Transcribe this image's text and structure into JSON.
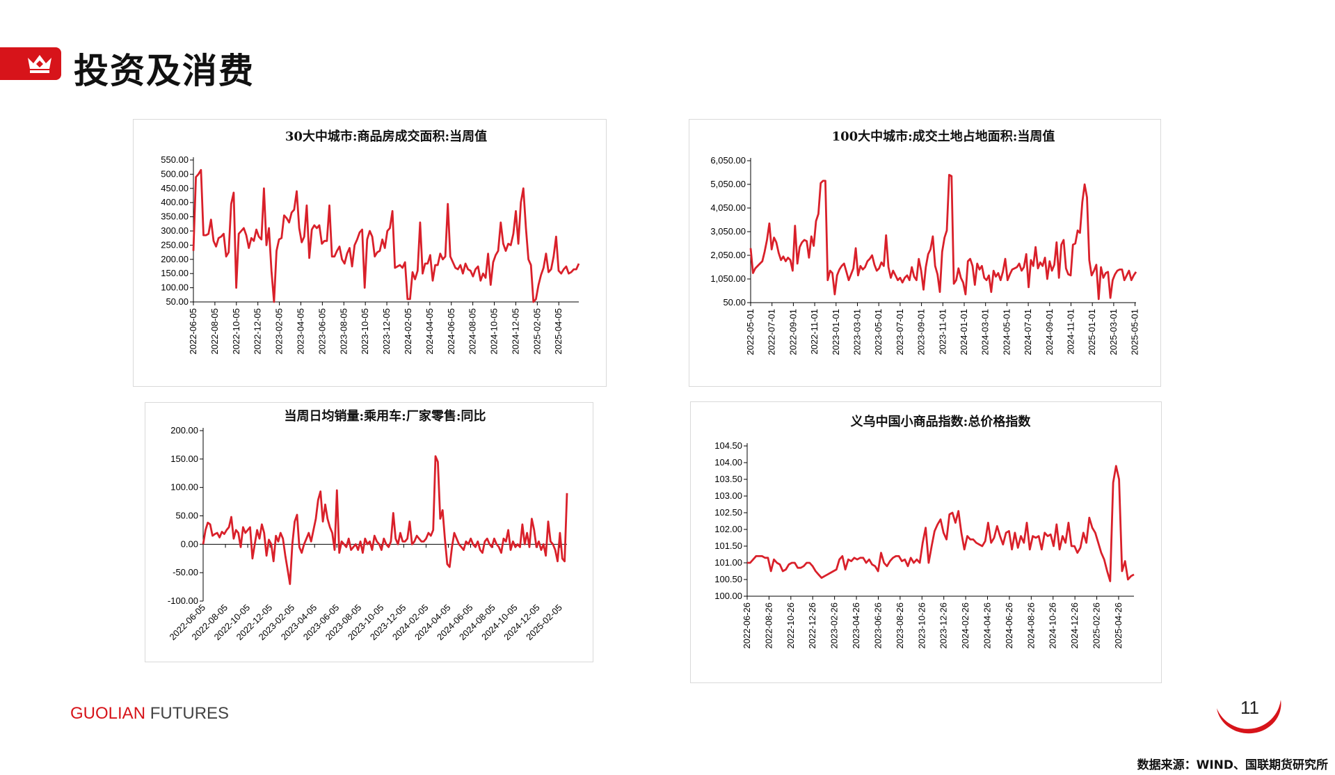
{
  "page": {
    "title": "投资及消费",
    "brand_part1": "GUOLIAN",
    "brand_part2": "FUTURES",
    "page_number": "11",
    "source": "数据来源：WIND、国联期货研究所",
    "accent_color": "#d7141a",
    "line_color": "#d9202a",
    "crown_icon": "crown-icon"
  },
  "chart_data": [
    {
      "type": "line",
      "title": "30大中城市:商品房成交面积:当周值",
      "xlabel": "",
      "ylabel": "",
      "ylim": [
        50,
        550
      ],
      "y_ticks": [
        "550.00",
        "500.00",
        "450.00",
        "400.00",
        "350.00",
        "300.00",
        "250.00",
        "200.00",
        "150.00",
        "100.00",
        "50.00"
      ],
      "x_ticks": [
        "2022-06-05",
        "2022-08-05",
        "2022-10-05",
        "2022-12-05",
        "2023-02-05",
        "2023-04-05",
        "2023-06-05",
        "2023-08-05",
        "2023-10-05",
        "2023-12-05",
        "2024-02-05",
        "2024-04-05",
        "2024-06-05",
        "2024-08-05",
        "2024-10-05",
        "2024-12-05",
        "2025-02-05",
        "2025-04-05"
      ],
      "x_tick_positions": [
        0,
        8.7,
        17.4,
        26.1,
        34.8,
        43.5,
        52.2,
        60.9,
        69.6,
        78.3,
        87,
        95.7,
        104.4,
        113.1,
        121.8,
        130.5,
        139.2,
        147.9
      ],
      "x_range": [
        0,
        156
      ],
      "values": [
        230,
        490,
        500,
        515,
        285,
        285,
        290,
        340,
        265,
        245,
        275,
        280,
        290,
        210,
        225,
        395,
        435,
        100,
        290,
        300,
        310,
        285,
        240,
        275,
        265,
        305,
        280,
        270,
        450,
        250,
        310,
        160,
        50,
        230,
        270,
        275,
        355,
        345,
        330,
        365,
        375,
        440,
        310,
        260,
        280,
        390,
        205,
        305,
        320,
        310,
        320,
        255,
        265,
        265,
        390,
        210,
        210,
        230,
        245,
        200,
        185,
        220,
        240,
        175,
        250,
        270,
        295,
        305,
        100,
        270,
        300,
        280,
        210,
        225,
        230,
        270,
        240,
        300,
        310,
        370,
        170,
        175,
        180,
        170,
        190,
        60,
        60,
        155,
        130,
        160,
        330,
        150,
        185,
        185,
        215,
        125,
        180,
        180,
        220,
        200,
        210,
        395,
        210,
        190,
        170,
        165,
        180,
        150,
        185,
        165,
        160,
        140,
        165,
        175,
        125,
        150,
        135,
        220,
        110,
        190,
        215,
        230,
        330,
        255,
        230,
        255,
        250,
        290,
        370,
        255,
        400,
        450,
        310,
        200,
        180,
        50,
        60,
        110,
        145,
        170,
        220,
        155,
        165,
        210,
        280,
        160,
        150,
        165,
        175,
        150,
        155,
        165,
        165,
        185
      ]
    },
    {
      "type": "line",
      "title": "100大中城市:成交土地占地面积:当周值",
      "ylim": [
        50,
        6050
      ],
      "y_ticks": [
        "6,050.00",
        "5,050.00",
        "4,050.00",
        "3,050.00",
        "2,050.00",
        "1,050.00",
        "50.00"
      ],
      "x_ticks": [
        "2022-05-01",
        "2022-07-01",
        "2022-09-01",
        "2022-11-01",
        "2023-01-01",
        "2023-03-01",
        "2023-05-01",
        "2023-07-01",
        "2023-09-01",
        "2023-11-01",
        "2024-01-01",
        "2024-03-01",
        "2024-05-01",
        "2024-07-01",
        "2024-09-01",
        "2024-11-01",
        "2025-01-01",
        "2025-03-01",
        "2025-05-01"
      ],
      "x_tick_positions": [
        0,
        8.7,
        17.4,
        26.1,
        34.8,
        43.5,
        52.2,
        60.9,
        69.6,
        78.3,
        87,
        95.7,
        104.4,
        113.1,
        121.8,
        130.5,
        139.2,
        147.9,
        156.6
      ],
      "x_range": [
        0,
        157
      ],
      "values": [
        2350,
        1300,
        1500,
        1600,
        1700,
        1800,
        2200,
        2700,
        3400,
        2300,
        2800,
        2600,
        2150,
        1850,
        2000,
        1800,
        1950,
        1850,
        1400,
        3300,
        1700,
        2400,
        2600,
        2700,
        2650,
        1950,
        2850,
        2450,
        3500,
        3800,
        5100,
        5200,
        5200,
        1000,
        1400,
        1300,
        400,
        1200,
        1450,
        1600,
        1700,
        1350,
        1000,
        1250,
        1500,
        2350,
        1200,
        1600,
        1450,
        1550,
        1800,
        1900,
        2050,
        1650,
        1400,
        1500,
        1750,
        1600,
        2900,
        1550,
        1100,
        1400,
        1200,
        1000,
        1100,
        900,
        1100,
        1200,
        1000,
        1550,
        1150,
        1000,
        1900,
        1400,
        600,
        1550,
        2100,
        2300,
        2850,
        1600,
        1250,
        500,
        2200,
        2800,
        3100,
        5450,
        5400,
        850,
        1000,
        1500,
        1100,
        900,
        400,
        1800,
        1900,
        1600,
        800,
        1700,
        1450,
        1600,
        1100,
        1000,
        1200,
        500,
        1400,
        1150,
        1300,
        1000,
        1350,
        1900,
        1000,
        1250,
        1450,
        1500,
        1550,
        1700,
        1400,
        1550,
        2100,
        700,
        1850,
        1600,
        2400,
        1500,
        1750,
        1600,
        1950,
        1050,
        1800,
        1400,
        1650,
        2600,
        1100,
        2500,
        2700,
        1500,
        1250,
        1200,
        2500,
        2550,
        3100,
        3000,
        4300,
        5050,
        4500,
        1850,
        1200,
        1400,
        1650,
        200,
        1550,
        1100,
        1300,
        1350,
        250,
        1000,
        1250,
        1400,
        1450,
        1450,
        1000,
        1200,
        1400,
        1000,
        1200,
        1350
      ]
    },
    {
      "type": "line",
      "title": "当周日均销量:乘用车:厂家零售:同比",
      "ylim": [
        -100,
        200
      ],
      "y_ticks": [
        "200.00",
        "150.00",
        "100.00",
        "50.00",
        "0.00",
        "-50.00",
        "-100.00"
      ],
      "x_ticks": [
        "2022-06-05",
        "2022-08-05",
        "2022-10-05",
        "2022-12-05",
        "2023-02-05",
        "2023-04-05",
        "2023-06-05",
        "2023-08-05",
        "2023-10-05",
        "2023-12-05",
        "2024-02-05",
        "2024-04-05",
        "2024-06-05",
        "2024-08-05",
        "2024-10-05",
        "2024-12-05",
        "2025-02-05"
      ],
      "x_tick_positions": [
        0,
        8.7,
        17.4,
        26.1,
        34.8,
        43.5,
        52.2,
        60.9,
        69.6,
        78.3,
        87,
        95.7,
        104.4,
        113.1,
        121.8,
        130.5,
        139.2
      ],
      "x_range": [
        0,
        142
      ],
      "values": [
        0,
        25,
        38,
        35,
        15,
        18,
        20,
        12,
        22,
        18,
        25,
        30,
        48,
        10,
        25,
        20,
        -5,
        30,
        20,
        25,
        30,
        -25,
        0,
        25,
        10,
        35,
        20,
        -20,
        8,
        0,
        -30,
        15,
        5,
        20,
        10,
        -20,
        -45,
        -70,
        0,
        40,
        52,
        -5,
        -15,
        0,
        10,
        20,
        5,
        25,
        45,
        78,
        93,
        40,
        70,
        45,
        30,
        20,
        -10,
        95,
        -15,
        5,
        0,
        -5,
        10,
        -10,
        -5,
        0,
        -10,
        5,
        -15,
        10,
        0,
        5,
        -10,
        15,
        5,
        0,
        -10,
        10,
        0,
        -5,
        5,
        55,
        10,
        0,
        20,
        5,
        5,
        10,
        40,
        0,
        5,
        15,
        10,
        5,
        5,
        10,
        20,
        15,
        25,
        155,
        145,
        45,
        60,
        10,
        -35,
        -40,
        -5,
        20,
        10,
        0,
        -5,
        -10,
        5,
        0,
        10,
        0,
        -5,
        5,
        -10,
        -15,
        5,
        10,
        0,
        -5,
        10,
        0,
        -5,
        -15,
        10,
        5,
        25,
        -10,
        5,
        -5,
        0,
        -5,
        35,
        0,
        20,
        -5,
        45,
        25,
        -5,
        5,
        -10,
        0,
        -20,
        40,
        5,
        0,
        -10,
        -30,
        20,
        -25,
        -30,
        90
      ]
    },
    {
      "type": "line",
      "title": "义乌中国小商品指数:总价格指数",
      "ylim": [
        100,
        104.5
      ],
      "y_ticks": [
        "104.50",
        "104.00",
        "103.50",
        "103.00",
        "102.50",
        "102.00",
        "101.50",
        "101.00",
        "100.50",
        "100.00"
      ],
      "x_ticks": [
        "2022-06-26",
        "2022-08-26",
        "2022-10-26",
        "2022-12-26",
        "2023-02-26",
        "2023-04-26",
        "2023-06-26",
        "2023-08-26",
        "2023-10-26",
        "2023-12-26",
        "2024-02-26",
        "2024-04-26",
        "2024-06-26",
        "2024-08-26",
        "2024-10-26",
        "2024-12-26",
        "2025-02-26",
        "2025-04-26"
      ],
      "x_tick_positions": [
        0,
        8.7,
        17.4,
        26.1,
        34.8,
        43.5,
        52.2,
        60.9,
        69.6,
        78.3,
        87,
        95.7,
        104.4,
        113.1,
        121.8,
        130.5,
        139.2,
        147.9
      ],
      "x_range": [
        0,
        154
      ],
      "values": [
        101,
        101,
        101.1,
        101.2,
        101.2,
        101.2,
        101.15,
        101.15,
        100.75,
        101.1,
        101.0,
        100.95,
        100.75,
        100.8,
        100.95,
        101.0,
        101.0,
        100.85,
        100.85,
        100.9,
        101.0,
        101.0,
        100.9,
        100.75,
        100.65,
        100.55,
        100.6,
        100.65,
        100.7,
        100.75,
        100.8,
        101.1,
        101.2,
        100.8,
        101.1,
        101.05,
        101.15,
        101.1,
        101.15,
        101.15,
        101.0,
        101.1,
        100.95,
        100.9,
        100.75,
        101.3,
        101.0,
        100.9,
        101.05,
        101.15,
        101.2,
        101.2,
        101.05,
        101.1,
        100.9,
        101.15,
        101.0,
        101.1,
        101.0,
        101.6,
        102.05,
        101.0,
        101.5,
        101.95,
        102.15,
        102.3,
        101.9,
        101.7,
        102.45,
        102.5,
        102.2,
        102.55,
        101.9,
        101.4,
        101.8,
        101.7,
        101.7,
        101.6,
        101.55,
        101.5,
        101.65,
        102.2,
        101.6,
        101.75,
        102.1,
        101.8,
        101.55,
        101.9,
        101.95,
        101.4,
        101.9,
        101.45,
        101.8,
        101.6,
        102.2,
        101.4,
        101.8,
        101.75,
        101.8,
        101.4,
        101.9,
        101.8,
        101.85,
        101.5,
        102.15,
        101.4,
        101.8,
        101.6,
        102.2,
        101.5,
        101.5,
        101.3,
        101.45,
        101.9,
        101.6,
        102.35,
        102.05,
        101.9,
        101.6,
        101.3,
        101.1,
        100.75,
        100.45,
        103.4,
        103.9,
        103.5,
        100.75,
        101.05,
        100.5,
        100.6,
        100.65
      ]
    }
  ]
}
